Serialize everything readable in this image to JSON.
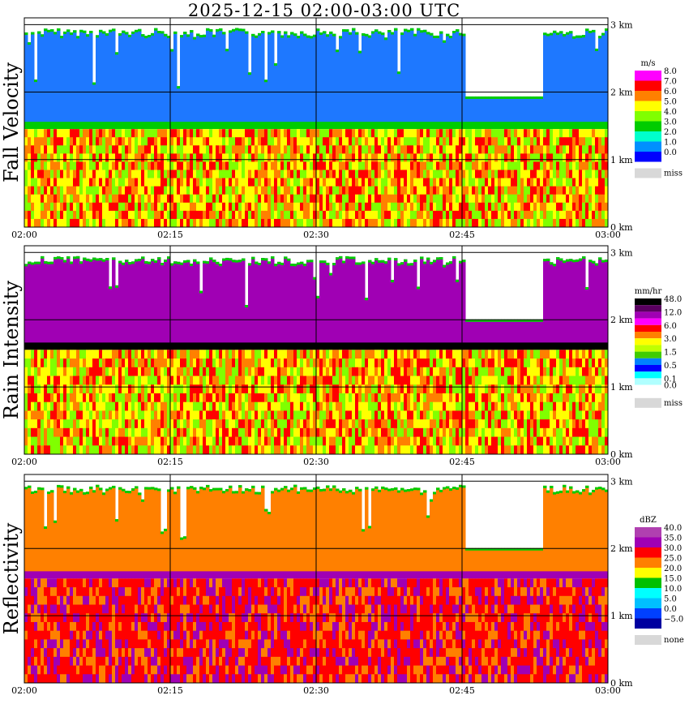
{
  "title": "2025-12-15   02:00-03:00 UTC",
  "chart_data": [
    {
      "type": "heatmap",
      "title": "Fall Velocity",
      "x_ticks": [
        "02:00",
        "02:15",
        "02:30",
        "02:45",
        "03:00"
      ],
      "y_ticks": [
        "0 km",
        "1 km",
        "2 km",
        "3 km"
      ],
      "ylim_km": [
        0,
        3.1
      ],
      "legend_unit": "m/s",
      "legend": [
        {
          "label": "8.0",
          "color": "#ff00ff"
        },
        {
          "label": "7.0",
          "color": "#ff0000"
        },
        {
          "label": "6.0",
          "color": "#ff8000"
        },
        {
          "label": "5.0",
          "color": "#ffff00"
        },
        {
          "label": "4.0",
          "color": "#80ff00"
        },
        {
          "label": "3.0",
          "color": "#00cc00"
        },
        {
          "label": "2.0",
          "color": "#00ffcc"
        },
        {
          "label": "1.0",
          "color": "#0090ff"
        },
        {
          "label": "0.0",
          "color": "#0000ff"
        }
      ],
      "missing": {
        "label": "miss",
        "color": "#d8d8d8"
      },
      "melting_layer_km": 1.5,
      "upper_color": "#1e78ff",
      "lower_colors": [
        "#ffff00",
        "#ff8000",
        "#80ff00",
        "#ff0000"
      ]
    },
    {
      "type": "heatmap",
      "title": "Rain Intensity",
      "x_ticks": [
        "02:00",
        "02:15",
        "02:30",
        "02:45",
        "03:00"
      ],
      "y_ticks": [
        "0 km",
        "1 km",
        "2 km",
        "3 km"
      ],
      "ylim_km": [
        0,
        3.1
      ],
      "legend_unit": "mm/hr",
      "legend": [
        {
          "label": "48.0",
          "color": "#000000"
        },
        {
          "label": "",
          "color": "#5a0060"
        },
        {
          "label": "12.0",
          "color": "#a000b4"
        },
        {
          "label": "",
          "color": "#ff00ff"
        },
        {
          "label": "6.0",
          "color": "#ff0000"
        },
        {
          "label": "",
          "color": "#ff8000"
        },
        {
          "label": "3.0",
          "color": "#ffff00"
        },
        {
          "label": "",
          "color": "#c0ff00"
        },
        {
          "label": "1.5",
          "color": "#40cc00"
        },
        {
          "label": "",
          "color": "#0080ff"
        },
        {
          "label": "0.5",
          "color": "#0000ff"
        },
        {
          "label": "",
          "color": "#00ffff"
        },
        {
          "label": "0.1",
          "color": "#b0ffff"
        },
        {
          "label": "0.0",
          "color": "#ffffff"
        }
      ],
      "missing": {
        "label": "miss",
        "color": "#d8d8d8"
      },
      "melting_layer_km": 1.6,
      "upper_color": "#a000b4",
      "lower_colors": [
        "#ffff00",
        "#ff0000",
        "#ff8000",
        "#80ff00"
      ]
    },
    {
      "type": "heatmap",
      "title": "Reflectivity",
      "x_ticks": [
        "02:00",
        "02:15",
        "02:30",
        "02:45",
        "03:00"
      ],
      "y_ticks": [
        "0 km",
        "1 km",
        "2 km",
        "3 km"
      ],
      "ylim_km": [
        0,
        3.1
      ],
      "legend_unit": "dBZ",
      "legend": [
        {
          "label": "40.0",
          "color": "#b040b0"
        },
        {
          "label": "35.0",
          "color": "#a000b4"
        },
        {
          "label": "30.0",
          "color": "#ff0000"
        },
        {
          "label": "25.0",
          "color": "#ff8000"
        },
        {
          "label": "20.0",
          "color": "#ffff00"
        },
        {
          "label": "15.0",
          "color": "#00c000"
        },
        {
          "label": "10.0",
          "color": "#00ffff"
        },
        {
          "label": "5.0",
          "color": "#00c0ff"
        },
        {
          "label": "0.0",
          "color": "#0040ff"
        },
        {
          "label": "−5.0",
          "color": "#0000a0"
        }
      ],
      "missing": {
        "label": "none",
        "color": "#d8d8d8"
      },
      "melting_layer_km": 1.6,
      "upper_color": "#ff8000",
      "lower_colors": [
        "#ff0000",
        "#ff0000",
        "#a000b4",
        "#ff8000"
      ]
    }
  ]
}
